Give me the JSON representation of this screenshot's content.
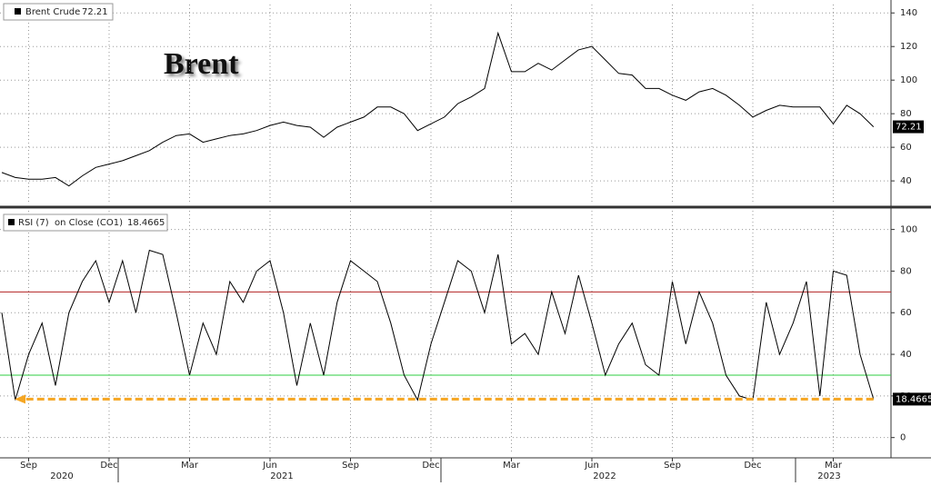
{
  "chart_data": [
    {
      "type": "line",
      "title": "Brent",
      "series": [
        {
          "name": "Brent Crude",
          "color": "#000000",
          "values": [
            45,
            42,
            41,
            41,
            42,
            37,
            43,
            48,
            50,
            52,
            55,
            58,
            63,
            67,
            68,
            63,
            65,
            67,
            68,
            70,
            73,
            75,
            73,
            72,
            66,
            72,
            75,
            78,
            84,
            84,
            80,
            70,
            74,
            78,
            86,
            90,
            95,
            128,
            105,
            105,
            110,
            106,
            112,
            118,
            120,
            112,
            104,
            103,
            95,
            95,
            91,
            88,
            93,
            95,
            91,
            85,
            78,
            82,
            85,
            84,
            84,
            84,
            74,
            85,
            80,
            72.21
          ]
        }
      ],
      "ylim": [
        26,
        145
      ],
      "yticks": [
        40,
        60,
        80,
        100,
        120,
        140
      ],
      "grid": true
    },
    {
      "type": "line",
      "series": [
        {
          "name": "RSI (7)  on Close (CO1)",
          "color": "#000000",
          "values": [
            60,
            18,
            40,
            55,
            25,
            60,
            75,
            85,
            65,
            85,
            60,
            90,
            88,
            60,
            30,
            55,
            40,
            75,
            65,
            80,
            85,
            60,
            25,
            55,
            30,
            65,
            85,
            80,
            75,
            55,
            30,
            18,
            45,
            65,
            85,
            80,
            60,
            88,
            45,
            50,
            40,
            70,
            50,
            78,
            55,
            30,
            45,
            55,
            35,
            30,
            75,
            45,
            70,
            55,
            30,
            20,
            18,
            65,
            40,
            55,
            75,
            20,
            80,
            78,
            40,
            18.4665
          ]
        }
      ],
      "reference_lines": [
        {
          "value": 70,
          "color": "#b22222"
        },
        {
          "value": 30,
          "color": "#2ecc40"
        }
      ],
      "current_line_color": "#f5a623",
      "categories": [
        null,
        null,
        "Sep",
        null,
        null,
        null,
        null,
        null,
        "Dec",
        null,
        null,
        null,
        null,
        null,
        "Mar",
        null,
        null,
        null,
        null,
        null,
        "Jun",
        null,
        null,
        null,
        null,
        null,
        "Sep",
        null,
        null,
        null,
        null,
        null,
        "Dec",
        null,
        null,
        null,
        null,
        null,
        "Mar",
        null,
        null,
        null,
        null,
        null,
        "Jun",
        null,
        null,
        null,
        null,
        null,
        "Sep",
        null,
        null,
        null,
        null,
        null,
        "Dec",
        null,
        null,
        null,
        null,
        null,
        "Mar",
        null,
        null,
        null
      ],
      "years": [
        "2020",
        "2021",
        "2022",
        "2023"
      ],
      "ylim": [
        -8,
        109
      ],
      "yticks": [
        0,
        20,
        40,
        60,
        80,
        100
      ],
      "grid": true
    }
  ]
}
